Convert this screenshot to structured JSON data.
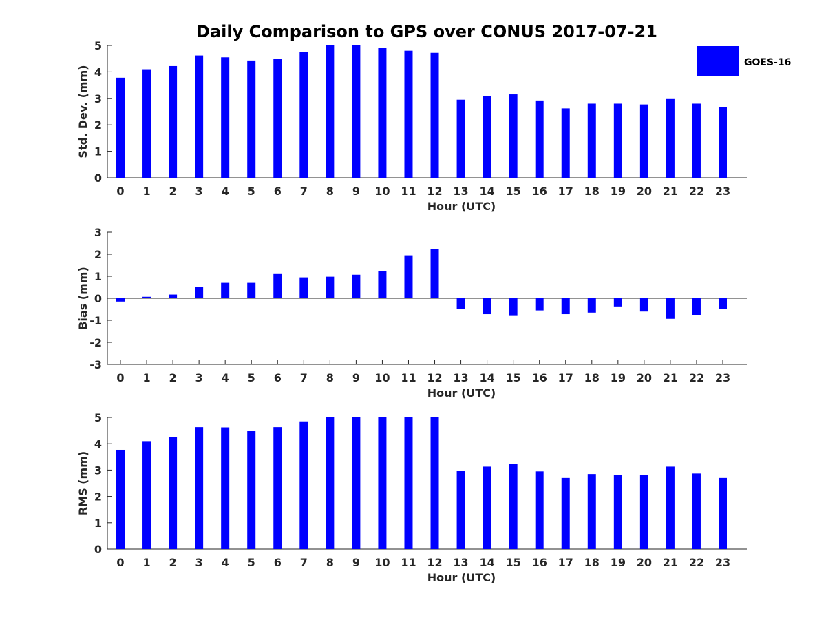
{
  "title": "Daily Comparison to GPS over CONUS 2017-07-21",
  "legend": {
    "label": "GOES-16",
    "color": "#0000ff"
  },
  "bar_color": "#0000ff",
  "chart_data": [
    {
      "type": "bar",
      "title": "Daily Comparison to GPS over CONUS 2017-07-21",
      "xlabel": "Hour (UTC)",
      "ylabel": "Std. Dev. (mm)",
      "ylim": [
        0,
        5
      ],
      "yticks": [
        "0",
        "1",
        "2",
        "3",
        "4",
        "5"
      ],
      "categories": [
        "0",
        "1",
        "2",
        "3",
        "4",
        "5",
        "6",
        "7",
        "8",
        "9",
        "10",
        "11",
        "12",
        "13",
        "14",
        "15",
        "16",
        "17",
        "18",
        "19",
        "20",
        "21",
        "22",
        "23"
      ],
      "series": [
        {
          "name": "GOES-16",
          "values": [
            3.78,
            4.1,
            4.22,
            4.62,
            4.55,
            4.43,
            4.5,
            4.75,
            5.0,
            5.0,
            4.9,
            4.8,
            4.72,
            2.95,
            3.08,
            3.15,
            2.92,
            2.62,
            2.8,
            2.8,
            2.77,
            3.0,
            2.8,
            2.67
          ]
        }
      ]
    },
    {
      "type": "bar",
      "xlabel": "Hour (UTC)",
      "ylabel": "Bias (mm)",
      "ylim": [
        -3,
        3
      ],
      "yticks": [
        "-3",
        "-2",
        "-1",
        "0",
        "1",
        "2",
        "3"
      ],
      "categories": [
        "0",
        "1",
        "2",
        "3",
        "4",
        "5",
        "6",
        "7",
        "8",
        "9",
        "10",
        "11",
        "12",
        "13",
        "14",
        "15",
        "16",
        "17",
        "18",
        "19",
        "20",
        "21",
        "22",
        "23"
      ],
      "series": [
        {
          "name": "GOES-16",
          "values": [
            -0.15,
            0.07,
            0.17,
            0.5,
            0.7,
            0.7,
            1.1,
            0.95,
            0.98,
            1.07,
            1.22,
            1.95,
            2.25,
            -0.48,
            -0.72,
            -0.77,
            -0.55,
            -0.72,
            -0.65,
            -0.37,
            -0.6,
            -0.93,
            -0.75,
            -0.48
          ]
        }
      ]
    },
    {
      "type": "bar",
      "xlabel": "Hour (UTC)",
      "ylabel": "RMS (mm)",
      "ylim": [
        0,
        5
      ],
      "yticks": [
        "0",
        "1",
        "2",
        "3",
        "4",
        "5"
      ],
      "categories": [
        "0",
        "1",
        "2",
        "3",
        "4",
        "5",
        "6",
        "7",
        "8",
        "9",
        "10",
        "11",
        "12",
        "13",
        "14",
        "15",
        "16",
        "17",
        "18",
        "19",
        "20",
        "21",
        "22",
        "23"
      ],
      "series": [
        {
          "name": "GOES-16",
          "values": [
            3.77,
            4.1,
            4.25,
            4.63,
            4.62,
            4.48,
            4.63,
            4.85,
            5.0,
            5.0,
            5.0,
            5.0,
            5.0,
            2.98,
            3.13,
            3.23,
            2.95,
            2.7,
            2.85,
            2.82,
            2.82,
            3.13,
            2.87,
            2.7
          ]
        }
      ]
    }
  ]
}
